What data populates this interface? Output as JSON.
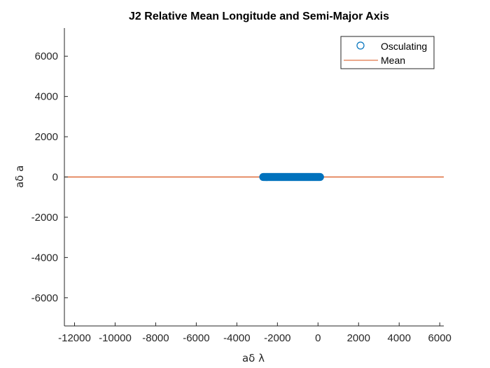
{
  "chart_data": {
    "type": "scatter",
    "title": "J2 Relative Mean Longitude and Semi-Major Axis",
    "xlabel": "aδ λ",
    "ylabel": "aδ a",
    "xlim": [
      -12500,
      6200
    ],
    "ylim": [
      -7400,
      7400
    ],
    "x_ticks": [
      -12000,
      -10000,
      -8000,
      -6000,
      -4000,
      -2000,
      0,
      2000,
      4000,
      6000
    ],
    "y_ticks": [
      -6000,
      -4000,
      -2000,
      0,
      2000,
      4000,
      6000
    ],
    "x_tick_labels": [
      "-12000",
      "-10000",
      "-8000",
      "-6000",
      "-4000",
      "-2000",
      "0",
      "2000",
      "4000",
      "6000"
    ],
    "y_tick_labels": [
      "-6000",
      "-4000",
      "-2000",
      "0",
      "2000",
      "4000",
      "6000"
    ],
    "grid": false,
    "legend_position": "top-right",
    "series": [
      {
        "name": "Osculating",
        "type": "scatter",
        "marker": "circle",
        "color": "#0072BD",
        "x_range": [
          -2700,
          100
        ],
        "y": 0
      },
      {
        "name": "Mean",
        "type": "line",
        "color": "#D95319",
        "x": [
          -12500,
          6200
        ],
        "y": [
          0,
          0
        ]
      }
    ]
  }
}
